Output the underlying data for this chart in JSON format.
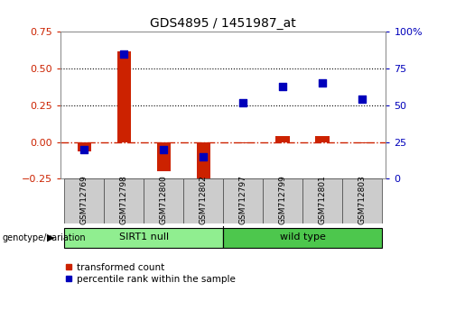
{
  "title": "GDS4895 / 1451987_at",
  "samples": [
    "GSM712769",
    "GSM712798",
    "GSM712800",
    "GSM712802",
    "GSM712797",
    "GSM712799",
    "GSM712801",
    "GSM712803"
  ],
  "red_bars": [
    -0.063,
    0.62,
    -0.2,
    -0.28,
    -0.01,
    0.04,
    0.038,
    -0.012
  ],
  "blue_pct": [
    20,
    85,
    20,
    15,
    52,
    63,
    65,
    54
  ],
  "ylim_left": [
    -0.25,
    0.75
  ],
  "ylim_right": [
    0,
    100
  ],
  "yticks_left": [
    -0.25,
    0.0,
    0.25,
    0.5,
    0.75
  ],
  "yticks_right": [
    0,
    25,
    50,
    75,
    100
  ],
  "groups": [
    {
      "label": "SIRT1 null",
      "indices": [
        0,
        1,
        2,
        3
      ],
      "color": "#90EE90"
    },
    {
      "label": "wild type",
      "indices": [
        4,
        5,
        6,
        7
      ],
      "color": "#4DC74D"
    }
  ],
  "group_label": "genotype/variation",
  "bar_color": "#CC2200",
  "dot_color": "#0000BB",
  "hline_color": "#CC2200",
  "bg_color": "#FFFFFF",
  "legend_red_label": "transformed count",
  "legend_blue_label": "percentile rank within the sample",
  "bar_width": 0.35,
  "dot_size": 28
}
